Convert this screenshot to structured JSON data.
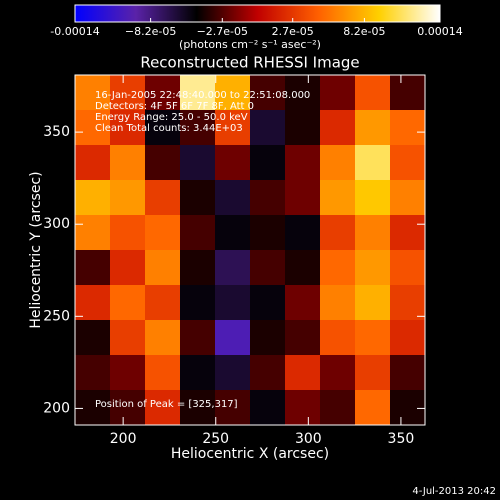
{
  "chart_data": {
    "type": "heatmap",
    "title": "Reconstructed RHESSI Image",
    "xlabel": "Heliocentric X (arcsec)",
    "ylabel": "Heliocentric Y (arcsec)",
    "colorbar_label": "(photons cm⁻² s⁻¹ asec⁻²)",
    "annotations": [
      "16-Jan-2005 22:48:40.000 to 22:51:08.000",
      "Detectors: 4F 5F 6F 7F 8F, Att 0",
      "Energy Range: 25.0 - 50.0 keV",
      "Clean    Total counts: 3.44E+03"
    ],
    "peak_label": "Position of Peak = [325,317]",
    "footer": "4-Jul-2013 20:42",
    "xlim": [
      174,
      363
    ],
    "ylim": [
      191,
      381
    ],
    "xticks": [
      200,
      250,
      300,
      350
    ],
    "yticks": [
      200,
      250,
      300,
      350
    ],
    "clim": [
      -0.00014,
      0.00014
    ],
    "cticks": [
      {
        "value": -0.00014,
        "label": "-0.00014"
      },
      {
        "value": -8.2e-05,
        "label": "−8.2e-05"
      },
      {
        "value": -2.7e-05,
        "label": "−2.7e-05"
      },
      {
        "value": 2.7e-05,
        "label": "2.7e-05"
      },
      {
        "value": 8.2e-05,
        "label": "8.2e-05"
      },
      {
        "value": 0.00014,
        "label": "0.00014"
      }
    ],
    "colormap": [
      "#0000ff",
      "#5a22a8",
      "#000000",
      "#c00000",
      "#ff6000",
      "#ffd000",
      "#ffffff"
    ],
    "z": [
      [
        6e-05,
        3e-05,
        -2e-05,
        0.00012,
        8e-05,
        -3e-05,
        -4e-05,
        -2e-05,
        4e-05,
        -3e-05
      ],
      [
        5e-05,
        2e-05,
        -5e-05,
        -3e-05,
        3e-05,
        -6e-05,
        -4e-05,
        2e-05,
        7e-05,
        5e-05
      ],
      [
        2e-05,
        6e-05,
        -3e-05,
        -6e-05,
        -2e-05,
        -5e-05,
        -2e-05,
        6e-05,
        0.00011,
        4e-05
      ],
      [
        8e-05,
        7e-05,
        3e-05,
        -4e-05,
        -6e-05,
        -3e-05,
        -2e-05,
        7e-05,
        9e-05,
        6e-05
      ],
      [
        6e-05,
        4e-05,
        5e-05,
        -3e-05,
        -5e-05,
        -4e-05,
        -5e-05,
        3e-05,
        6e-05,
        2e-05
      ],
      [
        -3e-05,
        2e-05,
        6e-05,
        -4e-05,
        -7e-05,
        -3e-05,
        -4e-05,
        5e-05,
        7e-05,
        4e-05
      ],
      [
        2e-05,
        5e-05,
        3e-05,
        -5e-05,
        -6e-05,
        -5e-05,
        -2e-05,
        6e-05,
        8e-05,
        3e-05
      ],
      [
        -4e-05,
        3e-05,
        6e-05,
        -3e-05,
        -0.0001,
        -4e-05,
        -3e-05,
        4e-05,
        5e-05,
        2e-05
      ],
      [
        -3e-05,
        -2e-05,
        4e-05,
        -5e-05,
        -6e-05,
        -3e-05,
        2e-05,
        -2e-05,
        3e-05,
        -3e-05
      ],
      [
        -4e-05,
        -3e-05,
        2e-05,
        -4e-05,
        -3e-05,
        -5e-05,
        -2e-05,
        -3e-05,
        5e-05,
        -4e-05
      ]
    ]
  }
}
